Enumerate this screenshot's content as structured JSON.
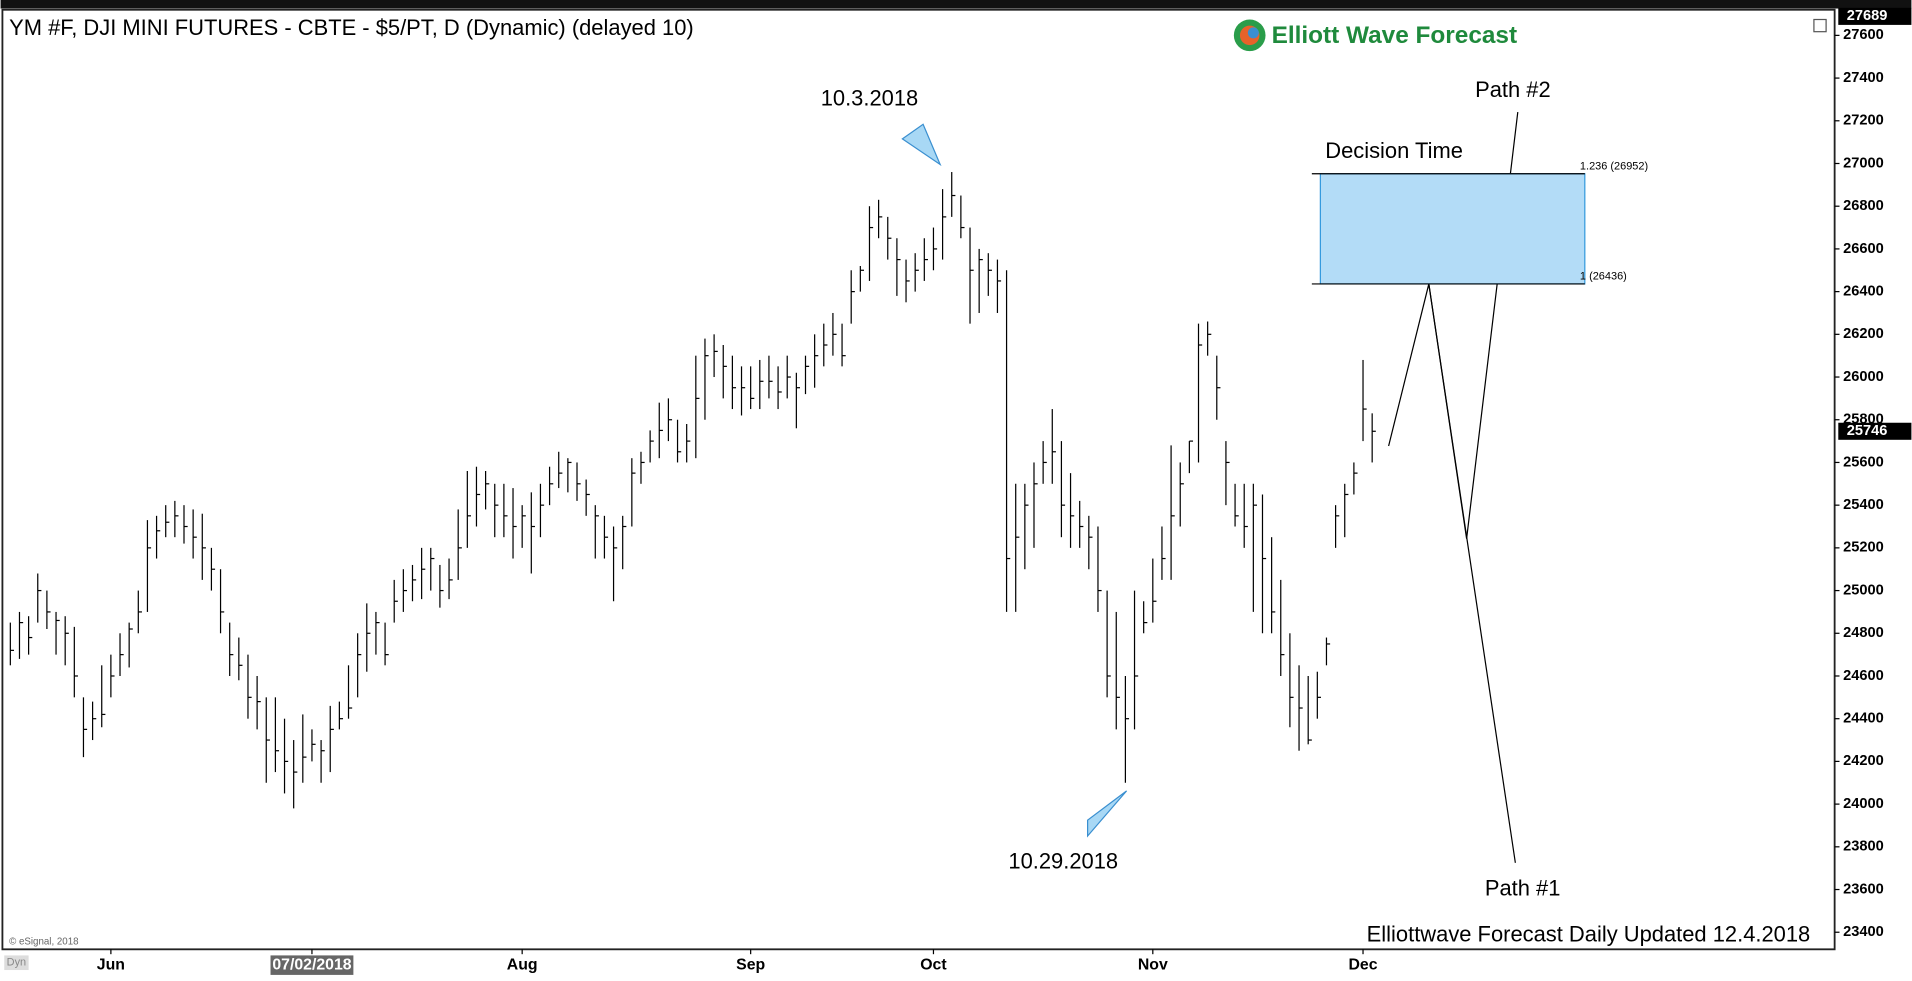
{
  "chart_data": {
    "type": "ohlc",
    "title": "YM #F, DJI MINI FUTURES - CBTE - $5/PT, D (Dynamic) (delayed 10)",
    "logo": "Elliott Wave Forecast",
    "footer": "Elliottwave Forecast Daily Updated 12.4.2018",
    "copyright": "© eSignal, 2018",
    "badge": "Dyn",
    "color": "#000000",
    "categories": [
      null,
      null,
      null,
      null,
      null,
      null,
      null,
      null,
      null,
      null,
      null,
      "Jun",
      null,
      null,
      null,
      null,
      null,
      null,
      null,
      null,
      null,
      null,
      null,
      null,
      null,
      null,
      null,
      null,
      null,
      null,
      null,
      null,
      null,
      "07/02/2018",
      null,
      null,
      null,
      null,
      null,
      null,
      null,
      null,
      null,
      null,
      null,
      null,
      null,
      null,
      null,
      null,
      null,
      null,
      null,
      null,
      null,
      null,
      "Aug",
      null,
      null,
      null,
      null,
      null,
      null,
      null,
      null,
      null,
      null,
      null,
      null,
      null,
      null,
      null,
      null,
      null,
      null,
      null,
      null,
      null,
      null,
      null,
      null,
      "Sep",
      null,
      null,
      null,
      null,
      null,
      null,
      null,
      null,
      null,
      null,
      null,
      null,
      null,
      null,
      null,
      null,
      null,
      null,
      null,
      "Oct",
      null,
      null,
      null,
      null,
      null,
      null,
      null,
      null,
      null,
      null,
      null,
      null,
      null,
      null,
      null,
      null,
      null,
      null,
      null,
      null,
      null,
      null,
      null,
      "Nov",
      null,
      null,
      null,
      null,
      null,
      null,
      null,
      null,
      null,
      null,
      null,
      null,
      null,
      null,
      null,
      null,
      null,
      null,
      null,
      null,
      null,
      null,
      "Dec",
      null
    ],
    "high": [
      24850,
      24900,
      24880,
      25080,
      25000,
      24900,
      24880,
      24830,
      24500,
      24480,
      24650,
      24700,
      24800,
      24850,
      25000,
      25330,
      25350,
      25400,
      25420,
      25400,
      25380,
      25360,
      25200,
      25100,
      24850,
      24780,
      24700,
      24600,
      24500,
      24500,
      24400,
      24300,
      24420,
      24350,
      24300,
      24460,
      24480,
      24650,
      24800,
      24940,
      24900,
      24850,
      25050,
      25100,
      25120,
      25200,
      25200,
      25120,
      25150,
      25380,
      25560,
      25580,
      25560,
      25500,
      25500,
      25480,
      25400,
      25460,
      25500,
      25580,
      25650,
      25620,
      25600,
      25520,
      25400,
      25350,
      25300,
      25350,
      25620,
      25650,
      25750,
      25880,
      25900,
      25800,
      25780,
      26100,
      26180,
      26200,
      26150,
      26100,
      26050,
      26050,
      26080,
      26100,
      26050,
      26100,
      26020,
      26100,
      26200,
      26250,
      26300,
      26250,
      26500,
      26520,
      26800,
      26830,
      26750,
      26650,
      26550,
      26580,
      26650,
      26700,
      26880,
      26960,
      26850,
      26700,
      26600,
      26580,
      26550,
      26500,
      25500,
      25500,
      25600,
      25700,
      25850,
      25700,
      25550,
      25420,
      25350,
      25300,
      25000,
      24900,
      24600,
      25000,
      24950,
      25150,
      25300,
      25680,
      25600,
      25700,
      26250,
      26260,
      26100,
      25700,
      25500,
      25500,
      25500,
      25450,
      25250,
      25050,
      24800,
      24650,
      24600,
      24620,
      24780,
      25400,
      25500,
      25600,
      26080,
      25830
    ],
    "low": [
      24650,
      24680,
      24700,
      24850,
      24820,
      24700,
      24650,
      24500,
      24220,
      24300,
      24360,
      24500,
      24600,
      24640,
      24800,
      24900,
      25150,
      25250,
      25250,
      25220,
      25150,
      25050,
      25000,
      24800,
      24600,
      24580,
      24400,
      24350,
      24100,
      24150,
      24050,
      23980,
      24100,
      24200,
      24100,
      24150,
      24350,
      24400,
      24500,
      24620,
      24700,
      24650,
      24850,
      24900,
      24950,
      24960,
      25000,
      24920,
      24960,
      25050,
      25200,
      25300,
      25380,
      25250,
      25250,
      25150,
      25200,
      25080,
      25250,
      25400,
      25480,
      25460,
      25420,
      25350,
      25150,
      25150,
      24950,
      25100,
      25300,
      25500,
      25600,
      25620,
      25700,
      25600,
      25600,
      25620,
      25800,
      26000,
      25900,
      25850,
      25820,
      25850,
      25850,
      25900,
      25850,
      25900,
      25760,
      25920,
      25950,
      26050,
      26100,
      26050,
      26250,
      26400,
      26450,
      26650,
      26550,
      26380,
      26350,
      26400,
      26450,
      26500,
      26550,
      26750,
      26650,
      26250,
      26300,
      26380,
      26300,
      24900,
      24900,
      25100,
      25200,
      25500,
      25500,
      25250,
      25200,
      25200,
      25100,
      24900,
      24500,
      24350,
      24100,
      24350,
      24800,
      24850,
      25050,
      25050,
      25300,
      25550,
      25600,
      26100,
      25800,
      25400,
      25300,
      25200,
      24900,
      24800,
      24800,
      24600,
      24360,
      24250,
      24280,
      24400,
      24650,
      25200,
      25250,
      25450,
      25700,
      25600
    ],
    "close": [
      24720,
      24850,
      24780,
      25000,
      24900,
      24860,
      24800,
      24600,
      24350,
      24400,
      24420,
      24600,
      24700,
      24820,
      24900,
      25200,
      25280,
      25320,
      25350,
      25300,
      25250,
      25200,
      25100,
      24900,
      24700,
      24650,
      24500,
      24480,
      24300,
      24250,
      24200,
      24150,
      24220,
      24280,
      24250,
      24350,
      24400,
      24450,
      24700,
      24800,
      24850,
      24700,
      24950,
      25000,
      25050,
      25100,
      25150,
      25000,
      25050,
      25200,
      25350,
      25450,
      25500,
      25400,
      25350,
      25300,
      25350,
      25300,
      25400,
      25500,
      25550,
      25600,
      25500,
      25450,
      25350,
      25250,
      25200,
      25300,
      25550,
      25600,
      25700,
      25750,
      25800,
      25650,
      25700,
      25900,
      26100,
      26120,
      26050,
      25950,
      25950,
      25900,
      25980,
      25980,
      25930,
      26000,
      25950,
      26050,
      26100,
      26150,
      26200,
      26100,
      26400,
      26500,
      26700,
      26750,
      26650,
      26550,
      26450,
      26500,
      26550,
      26600,
      26750,
      26850,
      26700,
      26500,
      26550,
      26500,
      26450,
      25150,
      25250,
      25400,
      25500,
      25600,
      25650,
      25400,
      25350,
      25300,
      25250,
      25000,
      24600,
      24500,
      24400,
      24600,
      24850,
      24950,
      25150,
      25350,
      25500,
      25700,
      26150,
      26200,
      25950,
      25600,
      25350,
      25300,
      25400,
      25150,
      24900,
      24700,
      24500,
      24450,
      24300,
      24500,
      24750,
      25350,
      25450,
      25550,
      25850,
      25746
    ],
    "ylim": [
      23320,
      27720
    ],
    "yticks": [
      23400,
      23600,
      23800,
      24000,
      24200,
      24400,
      24600,
      24800,
      25000,
      25200,
      25400,
      25600,
      25800,
      26000,
      26200,
      26400,
      26600,
      26800,
      27000,
      27200,
      27400,
      27600
    ],
    "price_markers": [
      27689,
      25746
    ],
    "levels": [
      {
        "value": 26952,
        "label": "1.236 (26952)"
      },
      {
        "value": 26436,
        "label": "1 (26436)"
      }
    ],
    "annotations": {
      "peak": "10.3.2018",
      "low": "10.29.2018",
      "zone": "Decision Time",
      "path1": "Path #1",
      "path2": "Path #2"
    }
  }
}
